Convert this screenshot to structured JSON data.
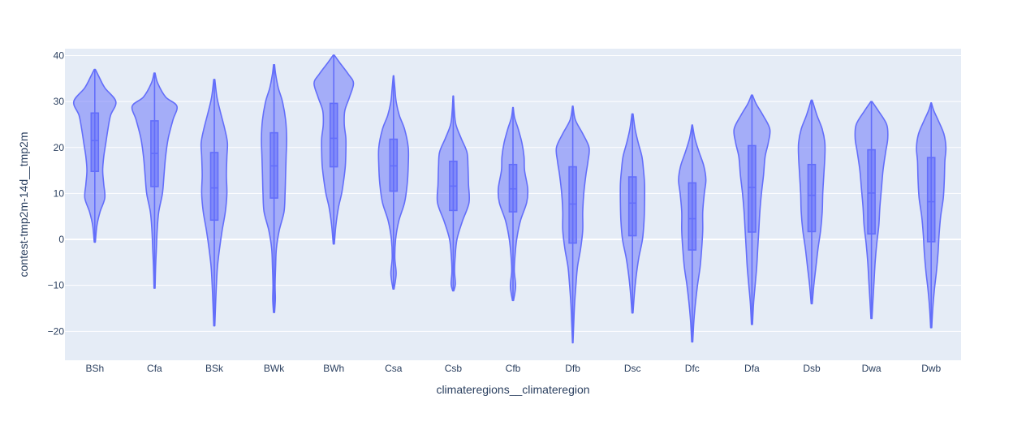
{
  "chart_data": {
    "type": "violin",
    "title": "",
    "xlabel": "climateregions__climateregion",
    "ylabel": "contest-tmp2m-14d__tmp2m",
    "ylim": [
      -26.3,
      41.5
    ],
    "yticks": [
      -20,
      -10,
      0,
      10,
      20,
      30,
      40
    ],
    "grid": true,
    "colors": {
      "plot_bg": "#e5ecf6",
      "grid": "#ffffff",
      "violin_fill": "#636efa",
      "violin_line": "#636efa",
      "text": "#2a3f5f"
    },
    "categories": [
      "BSh",
      "Cfa",
      "BSk",
      "BWk",
      "BWh",
      "Csa",
      "Csb",
      "Cfb",
      "Dfb",
      "Dsc",
      "Dfc",
      "Dfa",
      "Dsb",
      "Dwa",
      "Dwb"
    ],
    "series": [
      {
        "values": [
          {
            "category": "BSh",
            "min": -0.6,
            "q1": 14.8,
            "median": 21.5,
            "q3": 27.5,
            "max": 37.0,
            "density": [
              [
                -0.6,
                0.02
              ],
              [
                3,
                0.08
              ],
              [
                6,
                0.2
              ],
              [
                9,
                0.38
              ],
              [
                12,
                0.34
              ],
              [
                15,
                0.3
              ],
              [
                18,
                0.34
              ],
              [
                21,
                0.42
              ],
              [
                24,
                0.5
              ],
              [
                27,
                0.6
              ],
              [
                30,
                0.8
              ],
              [
                33,
                0.38
              ],
              [
                35.5,
                0.15
              ],
              [
                37,
                0.02
              ]
            ]
          },
          {
            "category": "Cfa",
            "min": -10.6,
            "q1": 11.5,
            "median": 18.7,
            "q3": 25.8,
            "max": 36.2,
            "density": [
              [
                -10.6,
                0.02
              ],
              [
                -6,
                0.04
              ],
              [
                -2,
                0.07
              ],
              [
                2,
                0.1
              ],
              [
                6,
                0.16
              ],
              [
                10,
                0.3
              ],
              [
                14,
                0.36
              ],
              [
                18,
                0.42
              ],
              [
                22,
                0.52
              ],
              [
                26,
                0.7
              ],
              [
                29,
                0.85
              ],
              [
                31,
                0.42
              ],
              [
                34,
                0.12
              ],
              [
                36.2,
                0.02
              ]
            ]
          },
          {
            "category": "BSk",
            "min": -18.8,
            "q1": 4.2,
            "median": 11.2,
            "q3": 18.9,
            "max": 34.8,
            "density": [
              [
                -18.8,
                0.02
              ],
              [
                -14,
                0.05
              ],
              [
                -10,
                0.08
              ],
              [
                -6,
                0.12
              ],
              [
                -2,
                0.2
              ],
              [
                2,
                0.3
              ],
              [
                6,
                0.42
              ],
              [
                10,
                0.48
              ],
              [
                14,
                0.46
              ],
              [
                18,
                0.48
              ],
              [
                21,
                0.5
              ],
              [
                24,
                0.4
              ],
              [
                28,
                0.22
              ],
              [
                31,
                0.1
              ],
              [
                34.8,
                0.02
              ]
            ]
          },
          {
            "category": "BWk",
            "min": -15.9,
            "q1": 9.0,
            "median": 16.0,
            "q3": 23.2,
            "max": 38.0,
            "density": [
              [
                -15.9,
                0.02
              ],
              [
                -13,
                0.05
              ],
              [
                -10,
                0.04
              ],
              [
                -6,
                0.06
              ],
              [
                -2,
                0.09
              ],
              [
                2,
                0.2
              ],
              [
                6,
                0.38
              ],
              [
                10,
                0.42
              ],
              [
                14,
                0.44
              ],
              [
                18,
                0.46
              ],
              [
                22,
                0.48
              ],
              [
                26,
                0.44
              ],
              [
                30,
                0.32
              ],
              [
                33,
                0.16
              ],
              [
                36,
                0.06
              ],
              [
                38,
                0.02
              ]
            ]
          },
          {
            "category": "BWh",
            "min": -1.0,
            "q1": 15.8,
            "median": 22.0,
            "q3": 29.6,
            "max": 40.1,
            "density": [
              [
                -1,
                0.02
              ],
              [
                3,
                0.08
              ],
              [
                7,
                0.18
              ],
              [
                10,
                0.3
              ],
              [
                13,
                0.38
              ],
              [
                16,
                0.44
              ],
              [
                19,
                0.46
              ],
              [
                22,
                0.46
              ],
              [
                25,
                0.4
              ],
              [
                28,
                0.42
              ],
              [
                31,
                0.6
              ],
              [
                34,
                0.75
              ],
              [
                36,
                0.55
              ],
              [
                38.5,
                0.22
              ],
              [
                40.1,
                0.02
              ]
            ]
          },
          {
            "category": "Csa",
            "min": -10.8,
            "q1": 10.5,
            "median": 16.0,
            "q3": 21.8,
            "max": 35.6,
            "density": [
              [
                -10.8,
                0.02
              ],
              [
                -7.5,
                0.1
              ],
              [
                -4,
                0.05
              ],
              [
                0,
                0.08
              ],
              [
                4,
                0.2
              ],
              [
                8,
                0.42
              ],
              [
                12,
                0.52
              ],
              [
                16,
                0.56
              ],
              [
                20,
                0.56
              ],
              [
                24,
                0.42
              ],
              [
                27,
                0.22
              ],
              [
                30,
                0.1
              ],
              [
                33,
                0.05
              ],
              [
                35.6,
                0.01
              ]
            ]
          },
          {
            "category": "Csb",
            "min": -11.2,
            "q1": 6.3,
            "median": 11.6,
            "q3": 17.0,
            "max": 31.2,
            "density": [
              [
                -11.2,
                0.02
              ],
              [
                -9.7,
                0.08
              ],
              [
                -7,
                0.05
              ],
              [
                -4,
                0.07
              ],
              [
                0,
                0.14
              ],
              [
                4,
                0.35
              ],
              [
                8,
                0.6
              ],
              [
                12,
                0.58
              ],
              [
                16,
                0.56
              ],
              [
                19,
                0.52
              ],
              [
                22,
                0.3
              ],
              [
                25,
                0.1
              ],
              [
                28,
                0.04
              ],
              [
                31.2,
                0.01
              ]
            ]
          },
          {
            "category": "Cfb",
            "min": -13.3,
            "q1": 6.0,
            "median": 11.0,
            "q3": 16.3,
            "max": 28.7,
            "density": [
              [
                -13.3,
                0.02
              ],
              [
                -10.2,
                0.1
              ],
              [
                -7,
                0.05
              ],
              [
                -4,
                0.07
              ],
              [
                0,
                0.14
              ],
              [
                4,
                0.28
              ],
              [
                8,
                0.52
              ],
              [
                11,
                0.56
              ],
              [
                15,
                0.44
              ],
              [
                18,
                0.42
              ],
              [
                21,
                0.34
              ],
              [
                24,
                0.2
              ],
              [
                26.5,
                0.06
              ],
              [
                28.7,
                0.01
              ]
            ]
          },
          {
            "category": "Dfb",
            "min": -22.5,
            "q1": -0.8,
            "median": 7.7,
            "q3": 15.8,
            "max": 29.0,
            "density": [
              [
                -22.5,
                0.01
              ],
              [
                -18,
                0.04
              ],
              [
                -14,
                0.07
              ],
              [
                -10,
                0.12
              ],
              [
                -6,
                0.18
              ],
              [
                -2,
                0.3
              ],
              [
                2,
                0.38
              ],
              [
                6,
                0.38
              ],
              [
                10,
                0.42
              ],
              [
                14,
                0.5
              ],
              [
                17,
                0.58
              ],
              [
                20,
                0.62
              ],
              [
                23,
                0.38
              ],
              [
                26,
                0.1
              ],
              [
                29,
                0.01
              ]
            ]
          },
          {
            "category": "Dsc",
            "min": -16.0,
            "q1": 0.8,
            "median": 7.9,
            "q3": 13.6,
            "max": 27.3,
            "density": [
              [
                -16,
                0.02
              ],
              [
                -12,
                0.07
              ],
              [
                -8,
                0.14
              ],
              [
                -4,
                0.24
              ],
              [
                0,
                0.38
              ],
              [
                4,
                0.44
              ],
              [
                8,
                0.46
              ],
              [
                12,
                0.46
              ],
              [
                15,
                0.42
              ],
              [
                18,
                0.36
              ],
              [
                21,
                0.22
              ],
              [
                24,
                0.1
              ],
              [
                27.3,
                0.02
              ]
            ]
          },
          {
            "category": "Dfc",
            "min": -22.3,
            "q1": -2.3,
            "median": 4.5,
            "q3": 12.3,
            "max": 24.9,
            "density": [
              [
                -22.3,
                0.02
              ],
              [
                -18,
                0.06
              ],
              [
                -14,
                0.12
              ],
              [
                -10,
                0.2
              ],
              [
                -6,
                0.3
              ],
              [
                -2,
                0.36
              ],
              [
                2,
                0.4
              ],
              [
                6,
                0.4
              ],
              [
                10,
                0.46
              ],
              [
                13,
                0.52
              ],
              [
                16,
                0.44
              ],
              [
                19,
                0.26
              ],
              [
                22,
                0.1
              ],
              [
                24.9,
                0.01
              ]
            ]
          },
          {
            "category": "Dfa",
            "min": -18.5,
            "q1": 1.6,
            "median": 11.3,
            "q3": 20.4,
            "max": 31.4,
            "density": [
              [
                -18.5,
                0.02
              ],
              [
                -14,
                0.06
              ],
              [
                -10,
                0.12
              ],
              [
                -6,
                0.18
              ],
              [
                -2,
                0.22
              ],
              [
                2,
                0.26
              ],
              [
                6,
                0.3
              ],
              [
                10,
                0.36
              ],
              [
                14,
                0.44
              ],
              [
                18,
                0.5
              ],
              [
                21,
                0.62
              ],
              [
                24,
                0.68
              ],
              [
                27,
                0.42
              ],
              [
                29.5,
                0.16
              ],
              [
                31.4,
                0.02
              ]
            ]
          },
          {
            "category": "Dsb",
            "min": -14.0,
            "q1": 1.7,
            "median": 9.6,
            "q3": 16.3,
            "max": 30.3,
            "density": [
              [
                -14,
                0.02
              ],
              [
                -10,
                0.08
              ],
              [
                -6,
                0.16
              ],
              [
                -2,
                0.24
              ],
              [
                2,
                0.34
              ],
              [
                6,
                0.4
              ],
              [
                10,
                0.42
              ],
              [
                14,
                0.46
              ],
              [
                18,
                0.5
              ],
              [
                21,
                0.5
              ],
              [
                24,
                0.4
              ],
              [
                27,
                0.2
              ],
              [
                30.3,
                0.02
              ]
            ]
          },
          {
            "category": "Dwa",
            "min": -17.2,
            "q1": 1.2,
            "median": 10.1,
            "q3": 19.5,
            "max": 30.0,
            "density": [
              [
                -17.2,
                0.02
              ],
              [
                -13,
                0.06
              ],
              [
                -9,
                0.1
              ],
              [
                -5,
                0.14
              ],
              [
                -1,
                0.2
              ],
              [
                3,
                0.28
              ],
              [
                7,
                0.32
              ],
              [
                11,
                0.38
              ],
              [
                15,
                0.44
              ],
              [
                19,
                0.54
              ],
              [
                22,
                0.62
              ],
              [
                25,
                0.58
              ],
              [
                28,
                0.26
              ],
              [
                30,
                0.02
              ]
            ]
          },
          {
            "category": "Dwb",
            "min": -19.2,
            "q1": -0.5,
            "median": 8.2,
            "q3": 17.8,
            "max": 29.7,
            "density": [
              [
                -19.2,
                0.02
              ],
              [
                -15,
                0.06
              ],
              [
                -11,
                0.12
              ],
              [
                -7,
                0.2
              ],
              [
                -3,
                0.26
              ],
              [
                1,
                0.3
              ],
              [
                5,
                0.36
              ],
              [
                9,
                0.46
              ],
              [
                13,
                0.5
              ],
              [
                17,
                0.52
              ],
              [
                20,
                0.56
              ],
              [
                23,
                0.48
              ],
              [
                26,
                0.26
              ],
              [
                28,
                0.1
              ],
              [
                29.7,
                0.01
              ]
            ]
          }
        ]
      }
    ]
  }
}
